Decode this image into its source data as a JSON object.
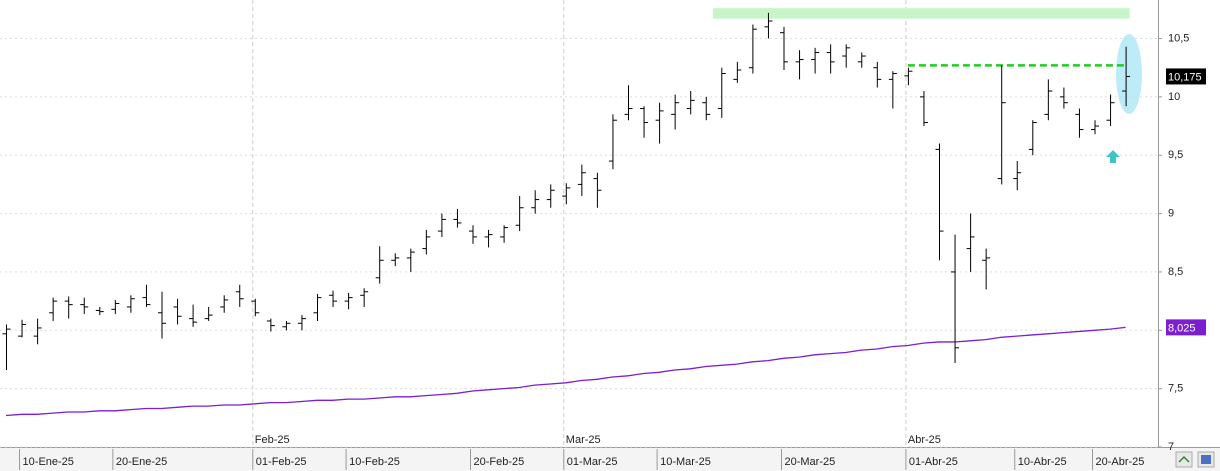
{
  "chart_data": {
    "type": "ohlc",
    "bar_color": "#000000",
    "categories": [
      null,
      "10-Ene-25",
      null,
      null,
      null,
      null,
      null,
      "20-Ene-25",
      null,
      null,
      null,
      null,
      null,
      null,
      null,
      null,
      "01-Feb-25",
      null,
      null,
      null,
      null,
      null,
      "10-Feb-25",
      null,
      null,
      null,
      null,
      null,
      null,
      null,
      "20-Feb-25",
      null,
      null,
      null,
      null,
      null,
      "01-Mar-25",
      null,
      null,
      null,
      null,
      null,
      "10-Mar-25",
      null,
      null,
      null,
      null,
      null,
      null,
      null,
      "20-Mar-25",
      null,
      null,
      null,
      null,
      null,
      null,
      null,
      "01-Abr-25",
      null,
      null,
      null,
      null,
      null,
      null,
      "10-Abr-25",
      null,
      null,
      null,
      null,
      "20-Abr-25",
      null,
      null
    ],
    "month_labels": [
      null,
      null,
      null,
      null,
      null,
      null,
      null,
      null,
      null,
      null,
      null,
      null,
      null,
      null,
      null,
      null,
      "Feb-25",
      null,
      null,
      null,
      null,
      null,
      null,
      null,
      null,
      null,
      null,
      null,
      null,
      null,
      null,
      null,
      null,
      null,
      null,
      null,
      "Mar-25",
      null,
      null,
      null,
      null,
      null,
      null,
      null,
      null,
      null,
      null,
      null,
      null,
      null,
      null,
      null,
      null,
      null,
      null,
      null,
      null,
      null,
      "Abr-25",
      null,
      null,
      null,
      null,
      null,
      null,
      null,
      null,
      null,
      null,
      null,
      null,
      null,
      null
    ],
    "open": [
      7.97,
      7.95,
      7.95,
      8.15,
      8.25,
      8.22,
      8.17,
      8.18,
      8.2,
      8.28,
      8.15,
      8.2,
      8.1,
      8.1,
      8.2,
      8.33,
      8.25,
      8.08,
      8.03,
      8.06,
      8.15,
      8.3,
      8.25,
      8.3,
      8.45,
      8.6,
      8.62,
      8.7,
      8.85,
      8.95,
      8.85,
      8.8,
      8.8,
      8.9,
      9.05,
      9.12,
      9.15,
      9.25,
      9.3,
      9.45,
      9.85,
      9.9,
      9.8,
      9.85,
      9.9,
      9.95,
      9.9,
      10.15,
      10.25,
      10.6,
      10.55,
      10.3,
      10.32,
      10.38,
      10.35,
      10.3,
      10.25,
      10.15,
      10.18,
      10.0,
      9.55,
      8.5,
      8.7,
      8.6,
      9.3,
      9.3,
      9.55,
      9.85,
      10.0,
      9.85,
      9.72,
      9.8,
      10.05
    ],
    "high": [
      8.05,
      8.09,
      8.1,
      8.28,
      8.29,
      8.28,
      8.2,
      8.26,
      8.3,
      8.39,
      8.33,
      8.27,
      8.22,
      8.2,
      8.3,
      8.39,
      8.27,
      8.1,
      8.08,
      8.13,
      8.31,
      8.34,
      8.32,
      8.36,
      8.72,
      8.66,
      8.7,
      8.86,
      9.0,
      9.04,
      8.9,
      8.86,
      8.9,
      9.15,
      9.2,
      9.25,
      9.26,
      9.42,
      9.35,
      9.85,
      10.1,
      9.92,
      9.95,
      10.02,
      10.05,
      10.0,
      10.25,
      10.3,
      10.62,
      10.72,
      10.6,
      10.4,
      10.42,
      10.45,
      10.45,
      10.38,
      10.3,
      10.22,
      10.25,
      10.05,
      9.6,
      8.82,
      9.0,
      8.7,
      10.27,
      9.45,
      9.8,
      10.15,
      10.08,
      9.9,
      9.8,
      10.02,
      10.43
    ],
    "low": [
      7.66,
      7.94,
      7.88,
      8.08,
      8.1,
      8.14,
      8.13,
      8.14,
      8.15,
      8.2,
      7.93,
      8.05,
      8.03,
      8.08,
      8.15,
      8.2,
      8.12,
      7.99,
      8.0,
      8.0,
      8.08,
      8.2,
      8.18,
      8.2,
      8.4,
      8.55,
      8.5,
      8.65,
      8.8,
      8.88,
      8.74,
      8.71,
      8.75,
      8.85,
      9.0,
      9.05,
      9.08,
      9.15,
      9.05,
      9.38,
      9.8,
      9.65,
      9.6,
      9.72,
      9.85,
      9.8,
      9.82,
      10.12,
      10.2,
      10.5,
      10.23,
      10.15,
      10.2,
      10.2,
      10.25,
      10.25,
      10.08,
      9.9,
      10.1,
      9.75,
      8.6,
      7.72,
      8.5,
      8.35,
      9.25,
      9.2,
      9.5,
      9.8,
      9.9,
      9.65,
      9.68,
      9.75,
      9.92
    ],
    "close": [
      8.01,
      8.05,
      8.02,
      8.25,
      8.22,
      8.2,
      8.16,
      8.23,
      8.27,
      8.22,
      8.06,
      8.12,
      8.07,
      8.13,
      8.26,
      8.27,
      8.15,
      8.04,
      8.06,
      8.1,
      8.28,
      8.25,
      8.28,
      8.33,
      8.6,
      8.62,
      8.67,
      8.8,
      8.95,
      8.92,
      8.8,
      8.82,
      8.88,
      9.05,
      9.12,
      9.2,
      9.22,
      9.35,
      9.2,
      9.8,
      9.9,
      9.78,
      9.88,
      9.95,
      9.97,
      9.85,
      10.2,
      10.23,
      10.58,
      10.65,
      10.3,
      10.32,
      10.38,
      10.3,
      10.42,
      10.35,
      10.15,
      10.2,
      10.22,
      9.78,
      8.85,
      7.85,
      8.8,
      8.62,
      9.95,
      9.35,
      9.78,
      10.05,
      9.95,
      9.72,
      9.75,
      9.95,
      10.175
    ],
    "last_close_label": "10,175",
    "ma": {
      "color": "#7b1fd1",
      "value_label": "8,025",
      "values": [
        7.27,
        7.28,
        7.28,
        7.29,
        7.3,
        7.3,
        7.31,
        7.31,
        7.32,
        7.33,
        7.33,
        7.34,
        7.35,
        7.35,
        7.36,
        7.36,
        7.37,
        7.38,
        7.38,
        7.39,
        7.4,
        7.4,
        7.41,
        7.41,
        7.42,
        7.43,
        7.43,
        7.44,
        7.45,
        7.46,
        7.48,
        7.49,
        7.5,
        7.51,
        7.53,
        7.54,
        7.55,
        7.57,
        7.58,
        7.6,
        7.61,
        7.63,
        7.64,
        7.66,
        7.67,
        7.69,
        7.7,
        7.71,
        7.73,
        7.74,
        7.76,
        7.77,
        7.79,
        7.8,
        7.81,
        7.83,
        7.84,
        7.86,
        7.87,
        7.89,
        7.9,
        7.9,
        7.91,
        7.92,
        7.94,
        7.95,
        7.96,
        7.97,
        7.98,
        7.99,
        8.0,
        8.01,
        8.025
      ]
    },
    "resistance_band": {
      "range": [
        10.67,
        10.76
      ],
      "from_index": 47,
      "color": "#c8f5c8"
    },
    "resistance_line": {
      "value": 10.27,
      "from_index": 58,
      "color": "#22cc22"
    },
    "ylim": [
      7,
      10.83
    ],
    "yticks": [
      {
        "value": 7,
        "label": "7"
      },
      {
        "value": 7.5,
        "label": "7,5"
      },
      {
        "value": 8,
        "label": "8"
      },
      {
        "value": 8.5,
        "label": "8,5"
      },
      9,
      {
        "value": 9.5,
        "label": "9,5"
      },
      10,
      {
        "value": 10.5,
        "label": "10,5"
      }
    ],
    "grid": true
  }
}
